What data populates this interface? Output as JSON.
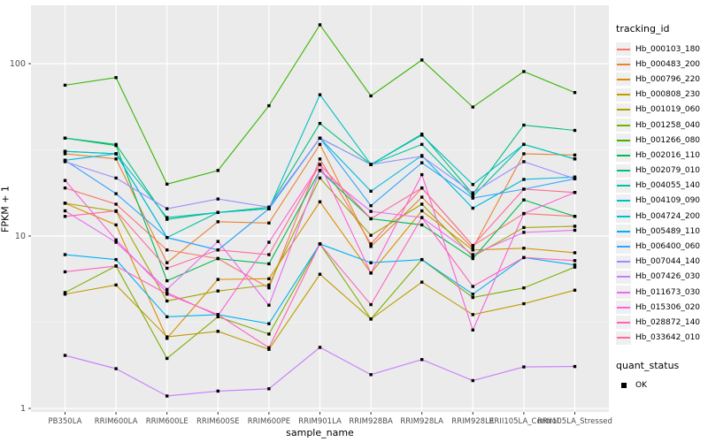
{
  "chart_data": {
    "type": "line",
    "title": "",
    "xlabel": "sample_name",
    "ylabel": "FPKM + 1",
    "y_scale": "log10",
    "y_ticks": [
      1,
      10,
      100
    ],
    "ylim": [
      1,
      210
    ],
    "grid": "on",
    "legend_position": "right",
    "categories": [
      "PB350LA",
      "RRIM600LA",
      "RRIM600LE",
      "RRIM600SE",
      "RRIM600PE",
      "RRIM901LA",
      "RRIM928BA",
      "RRIM928LA",
      "RRIM928LE",
      "RRII105LA_Control",
      "RRII105LA_Stressed"
    ],
    "series": [
      {
        "name": "Hb_000103_180",
        "color": "#F8766D",
        "values": [
          19,
          15.3,
          8.3,
          7.4,
          5.0,
          28,
          9.0,
          19,
          8.8,
          13.5,
          13.0
        ]
      },
      {
        "name": "Hb_000483_200",
        "color": "#EA8331",
        "values": [
          30,
          28,
          7.0,
          12.1,
          11.9,
          34,
          8.7,
          16.8,
          8.5,
          30,
          29.5
        ]
      },
      {
        "name": "Hb_000796_220",
        "color": "#D89000",
        "values": [
          15.5,
          11.6,
          2.55,
          5.6,
          5.65,
          15.8,
          6.1,
          14,
          8.3,
          8.5,
          8.0
        ]
      },
      {
        "name": "Hb_000808_230",
        "color": "#C09B00",
        "values": [
          4.6,
          5.2,
          2.6,
          2.8,
          2.2,
          6.0,
          3.3,
          5.4,
          3.5,
          4.05,
          4.85
        ]
      },
      {
        "name": "Hb_001019_060",
        "color": "#A3A500",
        "values": [
          15.5,
          13.9,
          4.2,
          4.8,
          5.2,
          21.7,
          10.1,
          15.3,
          7.6,
          11.2,
          11.4
        ]
      },
      {
        "name": "Hb_001258_040",
        "color": "#7CAE00",
        "values": [
          4.7,
          6.7,
          1.95,
          3.4,
          2.7,
          9.0,
          3.3,
          7.3,
          4.4,
          5.0,
          6.6
        ]
      },
      {
        "name": "Hb_001266_080",
        "color": "#39B600",
        "values": [
          75,
          83,
          20,
          24,
          57,
          168,
          65,
          105,
          56,
          90,
          68
        ]
      },
      {
        "name": "Hb_002016_110",
        "color": "#00BB4E",
        "values": [
          37,
          33.5,
          5.5,
          7.4,
          6.9,
          24,
          12.6,
          11.6,
          7.4,
          16.2,
          13.0
        ]
      },
      {
        "name": "Hb_002079_010",
        "color": "#00BF7D",
        "values": [
          37,
          34,
          12.5,
          13.7,
          14.7,
          45,
          26,
          39,
          17.5,
          44,
          41
        ]
      },
      {
        "name": "Hb_004055_140",
        "color": "#00C1A3",
        "values": [
          31,
          30,
          9.8,
          13.7,
          14.4,
          37,
          26,
          34,
          17,
          34,
          28
        ]
      },
      {
        "name": "Hb_004109_090",
        "color": "#00BFC4",
        "values": [
          31,
          30,
          12.8,
          13.7,
          14.4,
          66,
          26,
          38.5,
          19.9,
          34,
          28
        ]
      },
      {
        "name": "Hb_004724_200",
        "color": "#00BAE0",
        "values": [
          27.5,
          30,
          9.8,
          8.3,
          14.4,
          37,
          18.2,
          29.3,
          14.5,
          21.3,
          22
        ]
      },
      {
        "name": "Hb_005489_110",
        "color": "#00B0F6",
        "values": [
          7.8,
          7.3,
          3.4,
          3.5,
          3.1,
          9.0,
          7.0,
          7.3,
          4.6,
          7.5,
          6.8
        ]
      },
      {
        "name": "Hb_006400_060",
        "color": "#35A2FF",
        "values": [
          27.5,
          17.6,
          9.8,
          8.3,
          14.4,
          37,
          15.0,
          26.6,
          16.6,
          18.7,
          21.5
        ]
      },
      {
        "name": "Hb_007044_140",
        "color": "#9590FF",
        "values": [
          27,
          21.7,
          14.4,
          16.4,
          14.7,
          37,
          26,
          29,
          17.8,
          27,
          21.5
        ]
      },
      {
        "name": "Hb_007426_030",
        "color": "#C77CFF",
        "values": [
          2.03,
          1.7,
          1.18,
          1.26,
          1.3,
          2.26,
          1.57,
          1.92,
          1.45,
          1.74,
          1.75
        ]
      },
      {
        "name": "Hb_011673_030",
        "color": "#E76BF3",
        "values": [
          14,
          9.2,
          4.9,
          9.3,
          3.97,
          24,
          13.9,
          12.8,
          7.8,
          10.5,
          10.8
        ]
      },
      {
        "name": "Hb_015306_020",
        "color": "#FA62DB",
        "values": [
          21,
          9.5,
          4.7,
          3.45,
          9.2,
          26,
          6.1,
          22.7,
          2.85,
          13.5,
          17.9
        ]
      },
      {
        "name": "Hb_028872_140",
        "color": "#FF62BC",
        "values": [
          6.2,
          6.7,
          4.6,
          3.5,
          2.25,
          9.0,
          4.0,
          12.8,
          5.1,
          7.5,
          7.2
        ]
      },
      {
        "name": "Hb_033642_010",
        "color": "#FF6A98",
        "values": [
          13,
          14,
          6.5,
          8.3,
          7.8,
          26,
          12.6,
          19,
          8.8,
          18.7,
          17.9
        ]
      }
    ],
    "legend": {
      "title": "tracking_id",
      "quant_title": "quant_status",
      "quant_items": [
        "OK"
      ]
    },
    "point_marker": "black-square",
    "panel_background": "#EBEBEB",
    "gridline_color": "#FFFFFF"
  }
}
